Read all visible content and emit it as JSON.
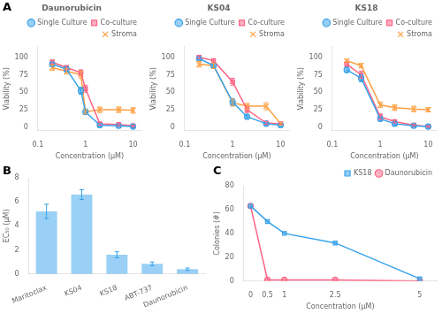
{
  "chart_data": [
    {
      "type": "line",
      "annotation": "A",
      "title": "Daunorubicin",
      "xlabel": "Concentration (μM)",
      "ylabel": "Viability (%)",
      "log": "x",
      "xlim": [
        0.1,
        15
      ],
      "xticks": [
        0.1,
        1,
        10
      ],
      "ylim": [
        -5,
        115
      ],
      "yticks": [
        0,
        25,
        50,
        75,
        100
      ],
      "grid": false,
      "legend": "upper right",
      "x": [
        0.2,
        0.4,
        0.8,
        1.0,
        2.0,
        5.0,
        10.0
      ],
      "series": [
        {
          "name": "Single Culture",
          "marker": "circle",
          "values": [
            90,
            83,
            52,
            22,
            3,
            2,
            1
          ],
          "errors": [
            3,
            4,
            5,
            4,
            2,
            1,
            1
          ]
        },
        {
          "name": "Co-culture",
          "marker": "square",
          "values": [
            93,
            85,
            78,
            55,
            5,
            4,
            2
          ],
          "errors": [
            3,
            3,
            4,
            5,
            2,
            2,
            1
          ]
        },
        {
          "name": "Stroma",
          "marker": "x",
          "values": [
            85,
            80,
            75,
            22,
            25,
            25,
            24
          ],
          "errors": [
            4,
            4,
            5,
            3,
            4,
            4,
            4
          ]
        }
      ]
    },
    {
      "type": "line",
      "title": "KS04",
      "xlabel": "Concentration (μM)",
      "ylabel": "Viability (%)",
      "log": "x",
      "xlim": [
        0.1,
        15
      ],
      "xticks": [
        0.1,
        1,
        10
      ],
      "ylim": [
        -5,
        115
      ],
      "yticks": [
        0,
        25,
        50,
        75,
        100
      ],
      "grid": false,
      "legend": "upper right",
      "x": [
        0.2,
        0.4,
        1.0,
        2.0,
        5.0,
        10.0
      ],
      "series": [
        {
          "name": "Single Culture",
          "marker": "circle",
          "values": [
            98,
            88,
            36,
            15,
            5,
            3
          ],
          "errors": [
            2,
            4,
            5,
            3,
            2,
            1
          ]
        },
        {
          "name": "Co-culture",
          "marker": "square",
          "values": [
            100,
            95,
            65,
            25,
            6,
            5
          ],
          "errors": [
            2,
            3,
            5,
            4,
            2,
            1
          ]
        },
        {
          "name": "Stroma",
          "marker": "x",
          "values": [
            90,
            88,
            35,
            30,
            30,
            5
          ],
          "errors": [
            4,
            4,
            5,
            4,
            5,
            2
          ]
        }
      ]
    },
    {
      "type": "line",
      "title": "KS18",
      "xlabel": "Concentration (μM)",
      "ylabel": "Viability (%)",
      "log": "x",
      "xlim": [
        0.1,
        15
      ],
      "xticks": [
        0.1,
        1,
        10
      ],
      "ylim": [
        -5,
        115
      ],
      "yticks": [
        0,
        25,
        50,
        75,
        100
      ],
      "grid": false,
      "legend": "upper right",
      "x": [
        0.2,
        0.4,
        1.0,
        2.0,
        5.0,
        10.0
      ],
      "series": [
        {
          "name": "Single Culture",
          "marker": "circle",
          "values": [
            82,
            70,
            12,
            5,
            2,
            1
          ],
          "errors": [
            4,
            5,
            3,
            2,
            1,
            1
          ]
        },
        {
          "name": "Co-culture",
          "marker": "square",
          "values": [
            90,
            75,
            15,
            8,
            3,
            1
          ],
          "errors": [
            3,
            5,
            4,
            2,
            1,
            1
          ]
        },
        {
          "name": "Stroma",
          "marker": "x",
          "values": [
            95,
            88,
            32,
            28,
            26,
            25
          ],
          "errors": [
            2,
            3,
            4,
            4,
            4,
            3
          ]
        }
      ]
    },
    {
      "type": "bar",
      "annotation": "B",
      "ylabel": "EC₅₀ (μM)",
      "categories": [
        "Maritoclax",
        "KS04",
        "KS18",
        "ABT-737",
        "Daunorubicin"
      ],
      "values": [
        5.2,
        6.6,
        1.6,
        0.85,
        0.4
      ],
      "errors": [
        0.6,
        0.4,
        0.25,
        0.15,
        0.1
      ],
      "ylim": [
        0,
        8
      ],
      "yticks": [
        0,
        2,
        4,
        6,
        8
      ],
      "grid": false
    },
    {
      "type": "line",
      "annotation": "C",
      "xlabel": "Concentration (μM)",
      "ylabel": "Colonies (#)",
      "xlim": [
        -0.2,
        5.5
      ],
      "xticks": [
        0,
        0.5,
        1,
        2.5,
        5
      ],
      "ylim": [
        0,
        80
      ],
      "yticks": [
        0,
        20,
        40,
        60,
        80
      ],
      "grid": false,
      "legend": "upper right",
      "x": [
        0,
        0.5,
        1.0,
        2.5,
        5.0
      ],
      "series": [
        {
          "name": "KS18",
          "marker": "square",
          "values": [
            63,
            50,
            40,
            32,
            2
          ]
        },
        {
          "name": "Daunorubicin",
          "marker": "circle",
          "values": [
            63,
            1,
            1,
            1,
            0
          ]
        }
      ]
    }
  ]
}
